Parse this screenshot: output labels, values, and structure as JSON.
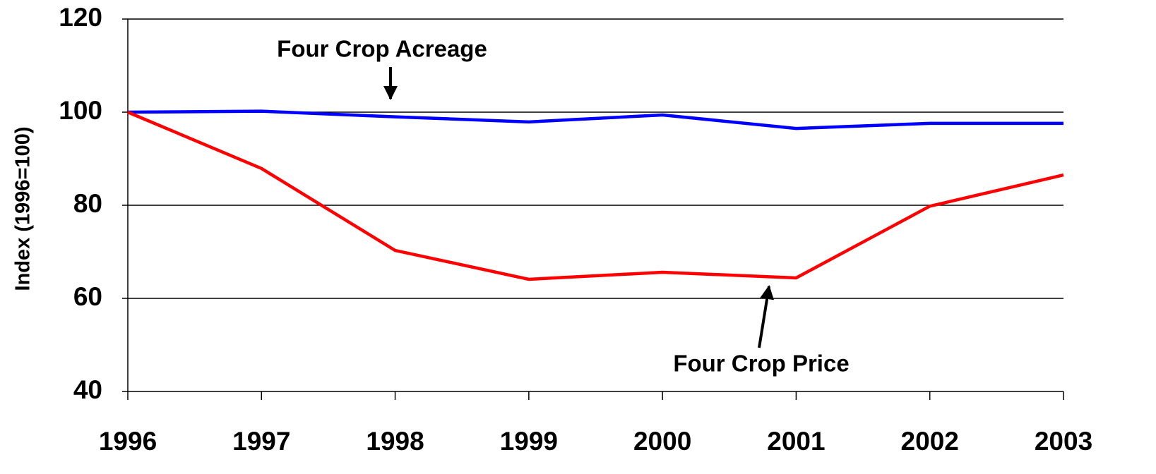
{
  "chart_data": {
    "type": "line",
    "y_label": "Index (1996=100)",
    "x": [
      1996,
      1997,
      1998,
      1999,
      2000,
      2001,
      2002,
      2003
    ],
    "xlim": [
      1996,
      2003
    ],
    "xticks": [
      1996,
      1997,
      1998,
      1999,
      2000,
      2001,
      2002,
      2003
    ],
    "ylim": [
      40,
      120
    ],
    "yticks": [
      40,
      60,
      80,
      100,
      120
    ],
    "grid": true,
    "series": [
      {
        "name": "Four Crop Acreage",
        "color": "#0000ff",
        "values": [
          100,
          100.2,
          99.0,
          97.9,
          99.4,
          96.5,
          97.6,
          97.6
        ]
      },
      {
        "name": "Four Crop Price",
        "color": "#ff0000",
        "values": [
          100,
          87.9,
          70.3,
          64.1,
          65.6,
          64.4,
          79.8,
          86.5
        ]
      }
    ]
  }
}
